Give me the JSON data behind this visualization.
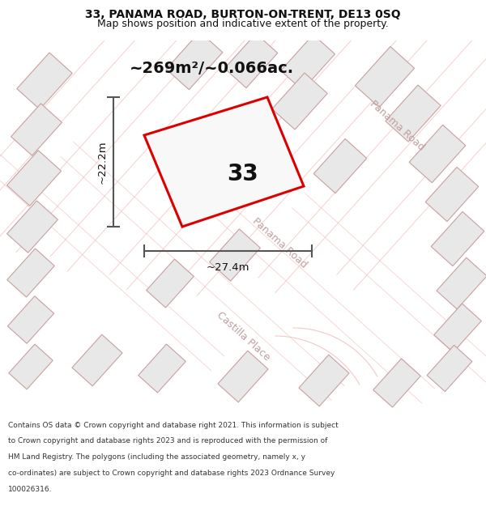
{
  "title_line1": "33, PANAMA ROAD, BURTON-ON-TRENT, DE13 0SQ",
  "title_line2": "Map shows position and indicative extent of the property.",
  "footer_text": "Contains OS data © Crown copyright and database right 2021. This information is subject to Crown copyright and database rights 2023 and is reproduced with the permission of HM Land Registry. The polygons (including the associated geometry, namely x, y co-ordinates) are subject to Crown copyright and database rights 2023 Ordnance Survey 100026316.",
  "area_label": "~269m²/~0.066ac.",
  "number_label": "33",
  "width_label": "~27.4m",
  "height_label": "~22.2m",
  "map_bg": "#ffffff",
  "plot_bg": "#ffffff",
  "road_outline_color": "#f0b0b0",
  "road_fill_color": "#ffffff",
  "building_face_color": "#e8e8e8",
  "building_edge_color": "#c8a0a0",
  "highlight_color": "#dd0000",
  "road_label_color": "#c0a0a0",
  "dim_line_color": "#555555",
  "text_color": "#111111",
  "title_fontsize": 10,
  "subtitle_fontsize": 9,
  "area_fontsize": 14,
  "number_fontsize": 20,
  "dim_fontsize": 9.5,
  "road_label_fontsize": 9,
  "footer_fontsize": 6.5
}
